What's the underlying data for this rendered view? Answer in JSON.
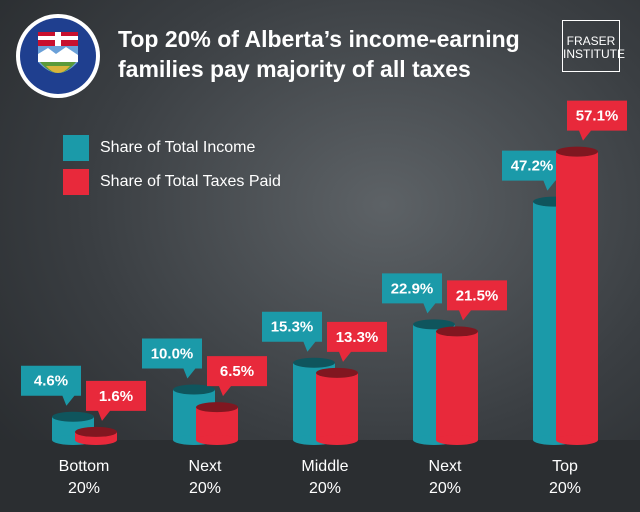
{
  "chart_data": {
    "type": "bar",
    "title": "Top 20% of Alberta’s income-earning families pay majority of all taxes",
    "brand": [
      "FRASER",
      "INSTITUTE"
    ],
    "categories": [
      "Bottom 20%",
      "Next 20%",
      "Middle 20%",
      "Next 20%",
      "Top 20%"
    ],
    "series": [
      {
        "name": "Share of Total Income",
        "color": "#1b9aa9",
        "values": [
          4.6,
          10.0,
          15.3,
          22.9,
          47.2
        ],
        "value_labels": [
          "4.6%",
          "10.0%",
          "15.3%",
          "22.9%",
          "47.2%"
        ]
      },
      {
        "name": "Share of Total Taxes Paid",
        "color": "#e8293b",
        "values": [
          1.6,
          6.5,
          13.3,
          21.5,
          57.1
        ],
        "value_labels": [
          "1.6%",
          "6.5%",
          "13.3%",
          "21.5%",
          "57.1%"
        ]
      }
    ]
  }
}
